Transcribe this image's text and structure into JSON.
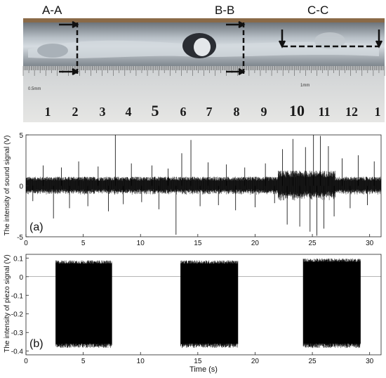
{
  "photo": {
    "section_labels": [
      "A-A",
      "B-B",
      "C-C"
    ],
    "ruler_numbers": [
      "1",
      "2",
      "3",
      "4",
      "5",
      "6",
      "7",
      "8",
      "9",
      "10",
      "11",
      "12",
      "1"
    ],
    "ruler_small_labels": [
      "0.5mm",
      "1mm"
    ],
    "colors": {
      "metal": "#9aa3ab",
      "bead": "#c9d0d6",
      "ruler": "#d9dadb",
      "wood": "#8a6a48",
      "dark": "#1a1c22"
    }
  },
  "chart_data": [
    {
      "type": "line",
      "panel_label": "(a)",
      "ylabel": "The intensity of sound signal (V)",
      "xlabel": "",
      "xlim": [
        0,
        31
      ],
      "ylim": [
        -5,
        5
      ],
      "xticks": [
        0,
        5,
        10,
        15,
        20,
        25,
        30
      ],
      "yticks": [
        -5,
        0,
        5
      ],
      "envelope": {
        "description_free": true,
        "segments": [
          {
            "x_start": 0,
            "x_end": 22,
            "baseline_amplitude": 0.9
          },
          {
            "x_start": 22,
            "x_end": 27,
            "baseline_amplitude": 1.5
          },
          {
            "x_start": 27,
            "x_end": 31,
            "baseline_amplitude": 0.9
          }
        ],
        "spikes": [
          {
            "x": 0.6,
            "y": -1.5
          },
          {
            "x": 1.5,
            "y": 2.0
          },
          {
            "x": 2.4,
            "y": -3.2
          },
          {
            "x": 3.1,
            "y": 1.8
          },
          {
            "x": 3.8,
            "y": -2.2
          },
          {
            "x": 4.6,
            "y": 2.4
          },
          {
            "x": 5.4,
            "y": -2.0
          },
          {
            "x": 6.3,
            "y": 1.9
          },
          {
            "x": 7.2,
            "y": -2.5
          },
          {
            "x": 7.8,
            "y": 5.0
          },
          {
            "x": 8.5,
            "y": -1.8
          },
          {
            "x": 9.2,
            "y": 2.2
          },
          {
            "x": 10.1,
            "y": -1.6
          },
          {
            "x": 11.0,
            "y": 2.0
          },
          {
            "x": 11.6,
            "y": -2.3
          },
          {
            "x": 12.4,
            "y": 1.7
          },
          {
            "x": 13.1,
            "y": -4.8
          },
          {
            "x": 13.6,
            "y": 3.2
          },
          {
            "x": 14.4,
            "y": 4.5
          },
          {
            "x": 15.2,
            "y": -2.0
          },
          {
            "x": 15.9,
            "y": 2.3
          },
          {
            "x": 16.8,
            "y": -1.9
          },
          {
            "x": 17.5,
            "y": 2.1
          },
          {
            "x": 18.3,
            "y": -2.4
          },
          {
            "x": 19.1,
            "y": 1.8
          },
          {
            "x": 20.0,
            "y": -2.1
          },
          {
            "x": 20.9,
            "y": 2.2
          },
          {
            "x": 21.7,
            "y": -1.7
          },
          {
            "x": 22.4,
            "y": 3.6
          },
          {
            "x": 22.8,
            "y": -3.8
          },
          {
            "x": 23.3,
            "y": 4.6
          },
          {
            "x": 23.9,
            "y": -4.0
          },
          {
            "x": 24.4,
            "y": 3.8
          },
          {
            "x": 24.8,
            "y": -4.5
          },
          {
            "x": 25.1,
            "y": 5.0
          },
          {
            "x": 25.4,
            "y": -4.9
          },
          {
            "x": 25.7,
            "y": 4.9
          },
          {
            "x": 26.0,
            "y": -4.2
          },
          {
            "x": 26.4,
            "y": 3.9
          },
          {
            "x": 26.9,
            "y": -3.0
          },
          {
            "x": 27.6,
            "y": 2.7
          },
          {
            "x": 28.3,
            "y": -2.2
          },
          {
            "x": 29.0,
            "y": 3.0
          },
          {
            "x": 29.8,
            "y": -1.9
          },
          {
            "x": 30.4,
            "y": 2.4
          }
        ]
      }
    },
    {
      "type": "line",
      "panel_label": "(b)",
      "ylabel": "The intensity of piezo signal (V)",
      "xlabel": "Time (s)",
      "xlim": [
        0,
        31
      ],
      "ylim": [
        -0.42,
        0.12
      ],
      "xticks": [
        0,
        5,
        10,
        15,
        20,
        25,
        30
      ],
      "yticks": [
        -0.4,
        -0.3,
        -0.2,
        -0.1,
        0,
        0.1
      ],
      "bursts": [
        {
          "x_start": 2.6,
          "x_end": 7.5,
          "y_max": 0.08,
          "y_min": -0.37
        },
        {
          "x_start": 13.5,
          "x_end": 18.5,
          "y_max": 0.08,
          "y_min": -0.37
        },
        {
          "x_start": 24.2,
          "x_end": 29.2,
          "y_max": 0.09,
          "y_min": -0.37
        }
      ]
    }
  ]
}
